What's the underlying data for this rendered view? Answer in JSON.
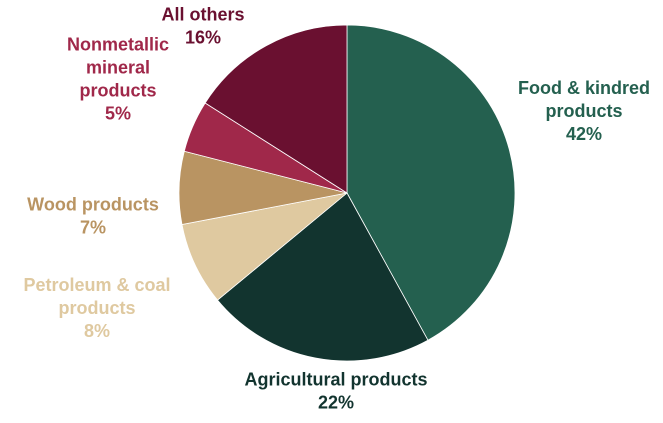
{
  "chart_data": {
    "type": "pie",
    "title": "",
    "start_angle_deg": 0,
    "direction": "clockwise",
    "slices": [
      {
        "label": [
          "Food & kindred",
          "products"
        ],
        "value": 42,
        "value_label": "42%",
        "color": "#24604f",
        "label_color": "#24604f"
      },
      {
        "label": [
          "Agricultural products"
        ],
        "value": 22,
        "value_label": "22%",
        "color": "#12342f",
        "label_color": "#12342f"
      },
      {
        "label": [
          "Petroleum & coal",
          "products"
        ],
        "value": 8,
        "value_label": "8%",
        "color": "#dfc9a0",
        "label_color": "#dfc9a0"
      },
      {
        "label": [
          "Wood products"
        ],
        "value": 7,
        "value_label": "7%",
        "color": "#b99462",
        "label_color": "#b99462"
      },
      {
        "label": [
          "Nonmetallic",
          "mineral",
          "products"
        ],
        "value": 5,
        "value_label": "5%",
        "color": "#a0284a",
        "label_color": "#a0284a"
      },
      {
        "label": [
          "All others"
        ],
        "value": 16,
        "value_label": "16%",
        "color": "#6a1030",
        "label_color": "#6a1030"
      }
    ]
  }
}
